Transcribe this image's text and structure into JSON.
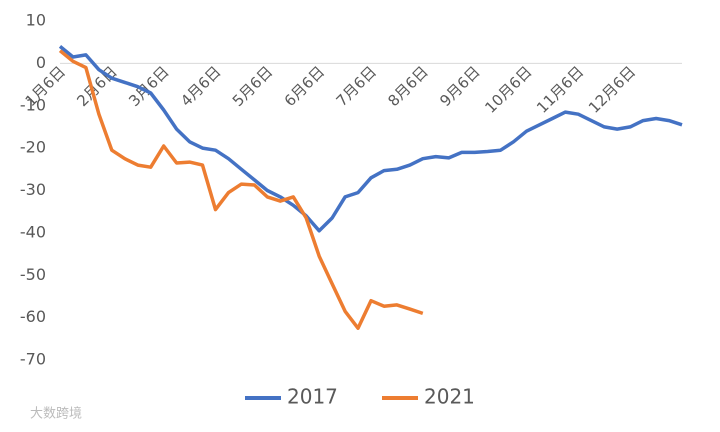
{
  "chart_data": {
    "type": "line",
    "categories": [
      "1月6日",
      null,
      null,
      null,
      "2月6日",
      null,
      null,
      null,
      "3月6日",
      null,
      null,
      null,
      "4月6日",
      null,
      null,
      null,
      "5月6日",
      null,
      null,
      null,
      "6月6日",
      null,
      null,
      null,
      "7月6日",
      null,
      null,
      null,
      "8月6日",
      null,
      null,
      null,
      "9月6日",
      null,
      null,
      null,
      "10月6日",
      null,
      null,
      null,
      "11月6日",
      null,
      null,
      null,
      "12月6日",
      null,
      null,
      null,
      null
    ],
    "series": [
      {
        "name": "2017",
        "color": "#4472c4",
        "values": [
          4,
          1.5,
          2,
          -1.5,
          -3.5,
          -4.5,
          -5.5,
          -7,
          -11,
          -15.5,
          -18.5,
          -20,
          -20.5,
          -22.5,
          -25,
          -27.5,
          -30,
          -31.5,
          -33.5,
          -36,
          -39.5,
          -36.5,
          -31.5,
          -30.5,
          -27,
          -25.3,
          -25,
          -24,
          -22.5,
          -22,
          -22.3,
          -21,
          -21,
          -20.8,
          -20.5,
          -18.5,
          -16,
          -14.5,
          -13,
          -11.5,
          -12,
          -13.5,
          -15,
          -15.5,
          -15,
          -13.5,
          -13,
          -13.5,
          -14.5
        ]
      },
      {
        "name": "2021",
        "color": "#ed7d31",
        "values": [
          3,
          0.5,
          -1,
          -12,
          -20.5,
          -22.5,
          -24,
          -24.5,
          -19.5,
          -23.5,
          -23.3,
          -24,
          -34.5,
          -30.5,
          -28.5,
          -28.7,
          -31.5,
          -32.5,
          -31.5,
          -36.5,
          -45.5,
          -52,
          -58.5,
          -62.5,
          -56,
          -57.3,
          -57,
          -58,
          -59,
          null,
          null,
          null,
          null,
          null,
          null,
          null,
          null,
          null,
          null,
          null,
          null,
          null,
          null,
          null,
          null,
          null,
          null,
          null,
          null
        ]
      }
    ],
    "ylim": [
      -70,
      10
    ],
    "yticks": [
      10,
      0,
      -10,
      -20,
      -30,
      -40,
      -50,
      -60,
      -70
    ],
    "legend": "bottom",
    "watermark": "大数跨境"
  }
}
